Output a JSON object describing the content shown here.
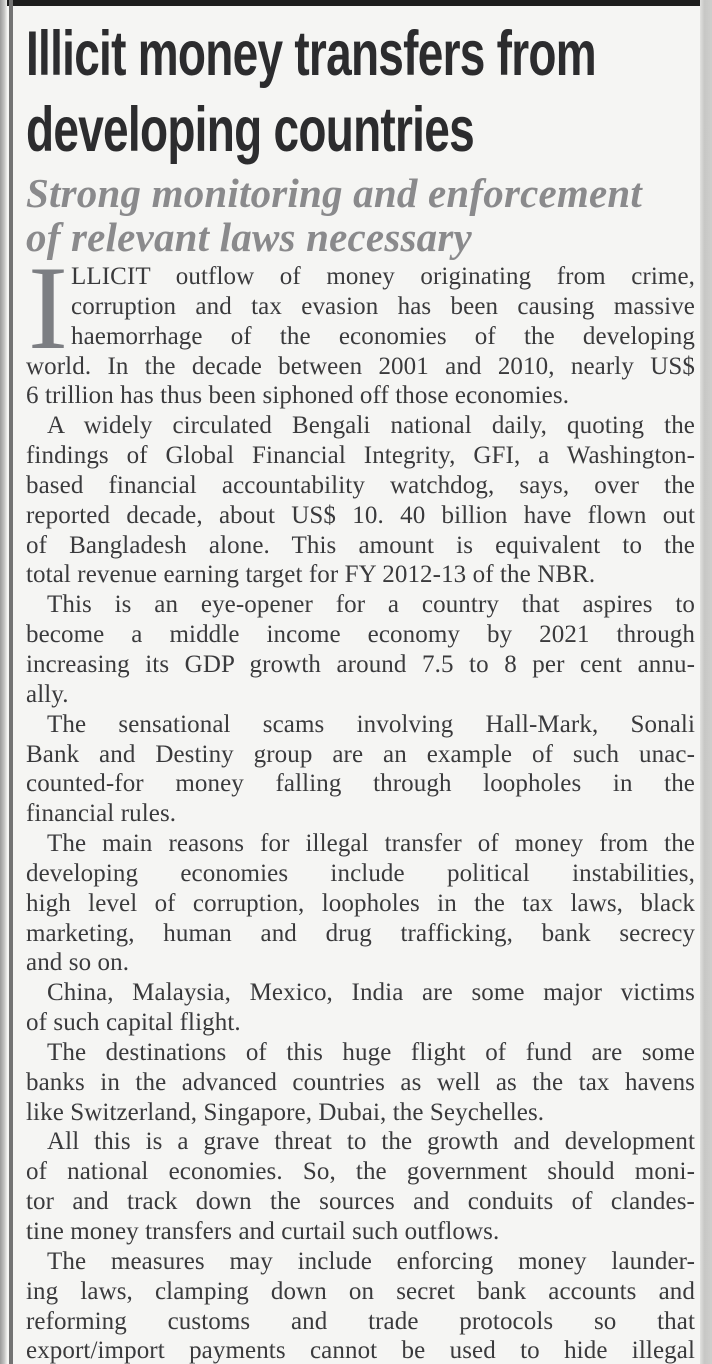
{
  "article": {
    "headline_lines": [
      "Illicit money transfers from",
      "developing countries"
    ],
    "subheadline_lines": [
      "Strong monitoring and enforcement",
      "of relevant laws necessary"
    ],
    "dropcap": "I",
    "paragraphs": [
      {
        "dropcap": true,
        "indent": false,
        "justify_last": false,
        "lines": [
          "LLICIT outflow of money originating from crime,",
          "corruption and tax evasion has been causing massive",
          "haemorrhage of the economies of the developing",
          "world. In the decade between 2001 and 2010, nearly US$",
          "6 trillion has thus been siphoned off those economies."
        ]
      },
      {
        "dropcap": false,
        "indent": true,
        "justify_last": false,
        "lines": [
          "A widely circulated Bengali national daily, quoting the",
          "findings of Global Financial Integrity, GFI, a Washington-",
          "based financial accountability watchdog, says, over the",
          "reported decade, about US$ 10. 40 billion have flown out",
          "of Bangladesh alone. This amount is equivalent to the",
          "total revenue earning target for FY 2012-13 of the NBR."
        ]
      },
      {
        "dropcap": false,
        "indent": true,
        "justify_last": false,
        "lines": [
          "This is an eye-opener for a country that aspires to",
          "become a middle income economy by 2021 through",
          "increasing its GDP growth around 7.5 to 8 per cent annu-",
          "ally."
        ]
      },
      {
        "dropcap": false,
        "indent": true,
        "justify_last": false,
        "lines": [
          "The sensational scams involving Hall-Mark, Sonali",
          "Bank and Destiny group are an example of such unac-",
          "counted-for money falling through loopholes in the",
          "financial rules."
        ]
      },
      {
        "dropcap": false,
        "indent": true,
        "justify_last": false,
        "lines": [
          "The main reasons for illegal transfer of money from the",
          "developing economies include political instabilities,",
          "high level of corruption, loopholes in the tax laws, black",
          "marketing, human and drug trafficking, bank secrecy",
          "and so on."
        ]
      },
      {
        "dropcap": false,
        "indent": true,
        "justify_last": false,
        "lines": [
          "China, Malaysia, Mexico, India are some major victims",
          "of such capital flight."
        ]
      },
      {
        "dropcap": false,
        "indent": true,
        "justify_last": false,
        "lines": [
          "The destinations of this huge flight of fund are some",
          "banks in the advanced countries as well as the tax havens",
          "like Switzerland, Singapore, Dubai, the Seychelles."
        ]
      },
      {
        "dropcap": false,
        "indent": true,
        "justify_last": false,
        "lines": [
          "All this is a grave threat to the growth and development",
          "of national economies. So, the government should moni-",
          "tor and track down the sources and conduits of clandes-",
          "tine money transfers and curtail such outflows."
        ]
      },
      {
        "dropcap": false,
        "indent": true,
        "justify_last": true,
        "lines": [
          "The measures may include enforcing money launder-",
          "ing laws, clamping down on secret bank accounts and",
          "reforming customs and trade protocols so that",
          "export/import payments cannot be used to hide illegal"
        ]
      }
    ]
  },
  "colors": {
    "paper_bg": "#f5f5f3",
    "headline_text": "#2c2c2e",
    "subheadline_text": "#8a8a8c",
    "body_text": "#3a3a3c",
    "dropcap_text": "#7c7e82",
    "top_rule": "#1d1d1d",
    "left_rule": "#737373",
    "right_shade": "#c7c7c5"
  }
}
